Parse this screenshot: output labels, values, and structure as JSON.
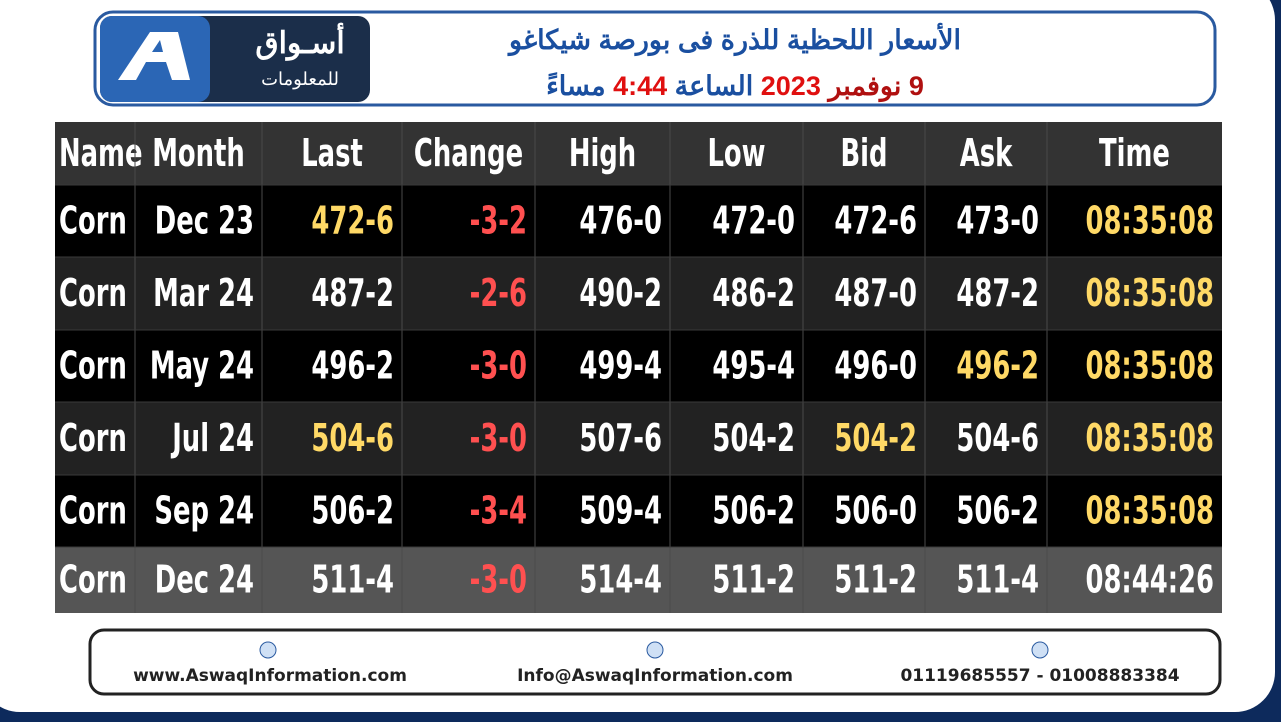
{
  "header": {
    "logo_main": "أسـواق",
    "logo_sub": "للمعلومات",
    "title_line1": "الأسعار اللحظية للذرة فى بورصة شيكاغو",
    "title_line2": [
      {
        "text": "9 نوفمبر",
        "color": "#b01010"
      },
      {
        "text": "2023",
        "color": "#e01010"
      },
      {
        "text": "الساعة",
        "color": "#1a4fa0"
      },
      {
        "text": "4:44",
        "color": "#e01010"
      },
      {
        "text": "مساءً",
        "color": "#1a4fa0"
      }
    ]
  },
  "table": {
    "columns": [
      "Name",
      "Month",
      "Last",
      "Change",
      "High",
      "Low",
      "Bid",
      "Ask",
      "Time"
    ],
    "rows": [
      [
        "Corn",
        "Dec 23",
        "472-6",
        "-3-2",
        "476-0",
        "472-0",
        "472-6",
        "473-0",
        "08:35:08"
      ],
      [
        "Corn",
        "Mar 24",
        "487-2",
        "-2-6",
        "490-2",
        "486-2",
        "487-0",
        "487-2",
        "08:35:08"
      ],
      [
        "Corn",
        "May 24",
        "496-2",
        "-3-0",
        "499-4",
        "495-4",
        "496-0",
        "496-2",
        "08:35:08"
      ],
      [
        "Corn",
        "Jul 24",
        "504-6",
        "-3-0",
        "507-6",
        "504-2",
        "504-2",
        "504-6",
        "08:35:08"
      ],
      [
        "Corn",
        "Sep 24",
        "506-2",
        "-3-4",
        "509-4",
        "506-2",
        "506-0",
        "506-2",
        "08:35:08"
      ],
      [
        "Corn",
        "Dec 24",
        "511-4",
        "-3-0",
        "514-4",
        "511-2",
        "511-2",
        "511-4",
        "08:44:26"
      ]
    ],
    "cell_colors": [
      [
        "#fff",
        "#fff",
        "#ffd966",
        "#ff5050",
        "#fff",
        "#fff",
        "#fff",
        "#fff",
        "#ffd966"
      ],
      [
        "#fff",
        "#fff",
        "#fff",
        "#ff5050",
        "#fff",
        "#fff",
        "#fff",
        "#fff",
        "#ffd966"
      ],
      [
        "#fff",
        "#fff",
        "#fff",
        "#ff5050",
        "#fff",
        "#fff",
        "#fff",
        "#ffd966",
        "#ffd966"
      ],
      [
        "#fff",
        "#fff",
        "#ffd966",
        "#ff5050",
        "#fff",
        "#fff",
        "#ffd966",
        "#fff",
        "#ffd966"
      ],
      [
        "#fff",
        "#fff",
        "#fff",
        "#ff5050",
        "#fff",
        "#fff",
        "#fff",
        "#fff",
        "#ffd966"
      ],
      [
        "#fff",
        "#fff",
        "#fff",
        "#ff5050",
        "#fff",
        "#fff",
        "#fff",
        "#fff",
        "#fff"
      ]
    ],
    "row_backgrounds": [
      "#000000",
      "#222222",
      "#000000",
      "#222222",
      "#000000",
      "#555555"
    ]
  },
  "footer": {
    "website": "www.AswaqInformation.com",
    "email": "Info@AswaqInformation.com",
    "phones": "01119685557 - 01008883384"
  }
}
